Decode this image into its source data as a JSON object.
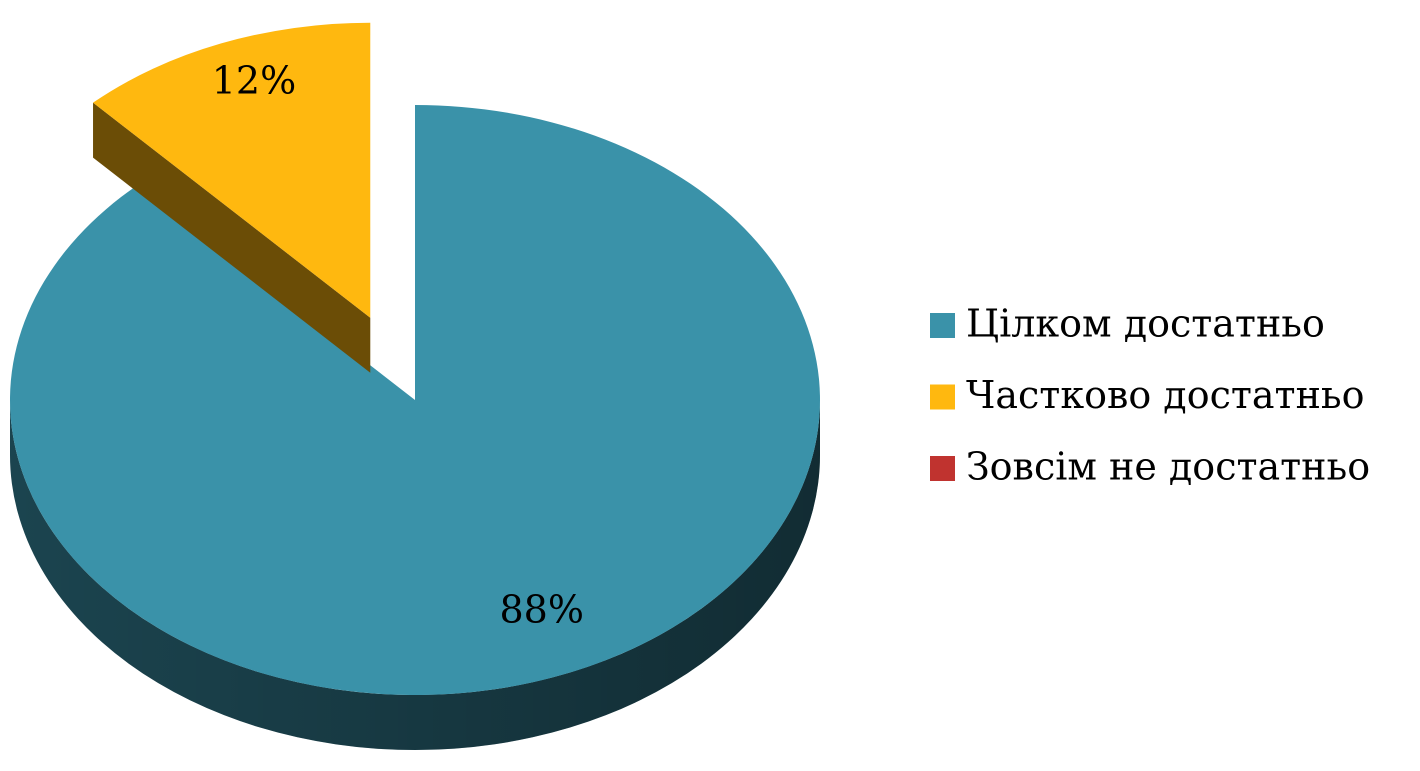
{
  "chart_data": {
    "type": "pie",
    "categories": [
      "Цілком достатньо",
      "Частково достатньо",
      "Зовсім не достатньо"
    ],
    "values": [
      88,
      12,
      0
    ],
    "value_labels": [
      "88%",
      "12%",
      null
    ],
    "colors": [
      "#3a92a9",
      "#ffb80f",
      "#c0332f"
    ],
    "exploded": [
      false,
      true,
      false
    ],
    "legend": "right"
  }
}
